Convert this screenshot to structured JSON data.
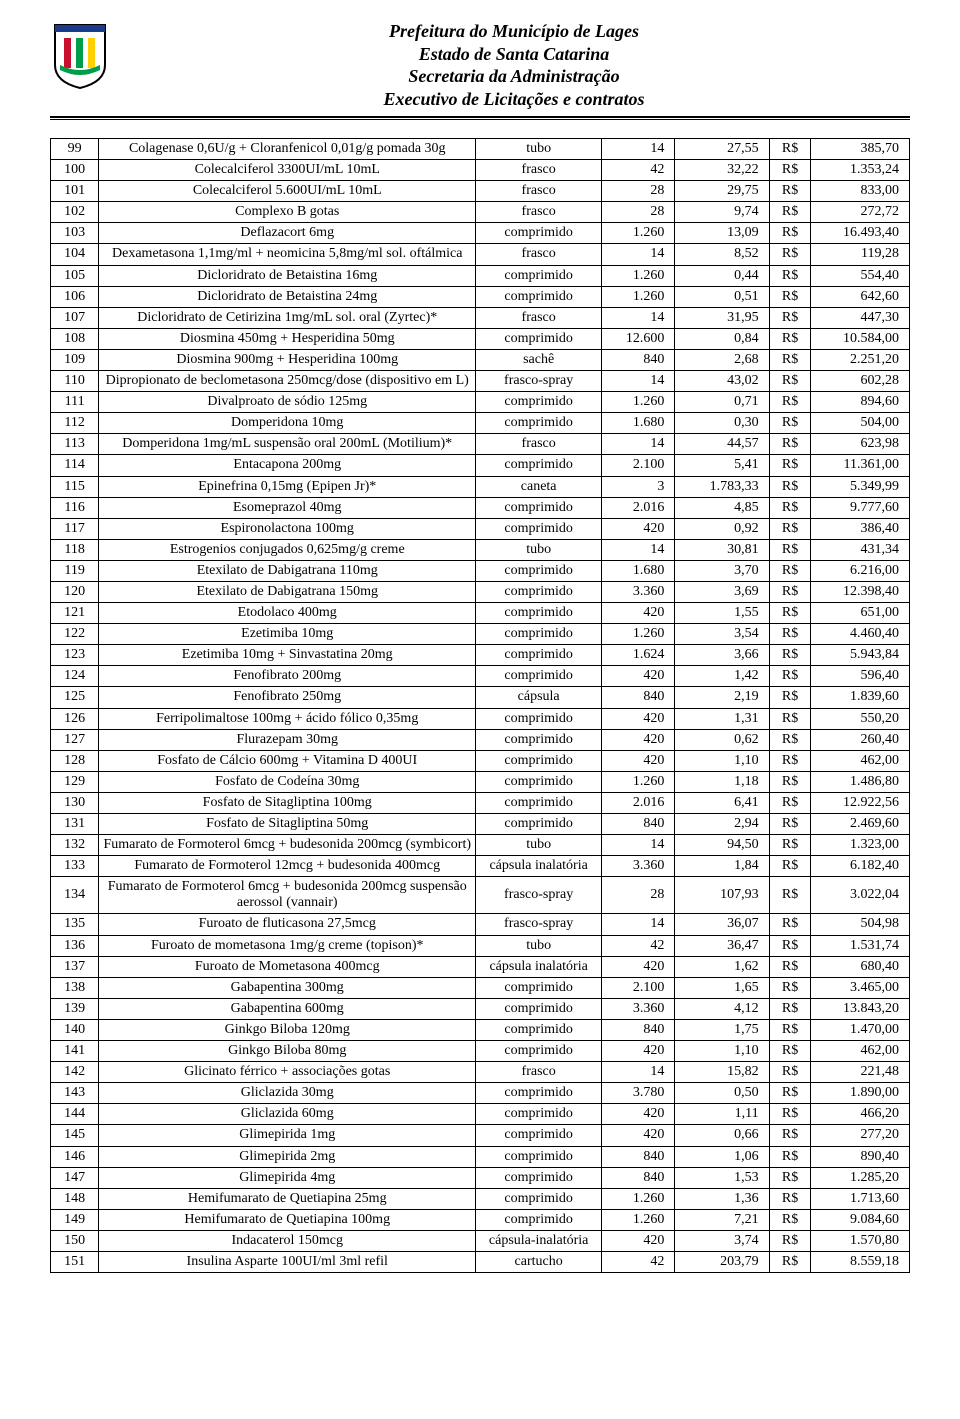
{
  "header": {
    "line1": "Prefeitura do Município de Lages",
    "line2": "Estado de Santa Catarina",
    "line3": "Secretaria da Administração",
    "line4": "Executivo de Licitações e contratos"
  },
  "currency": "R$",
  "rows": [
    {
      "n": "99",
      "desc": "Colagenase 0,6U/g + Cloranfenicol 0,01g/g pomada 30g",
      "unit": "tubo",
      "qty": "14",
      "price": "27,55",
      "total": "385,70"
    },
    {
      "n": "100",
      "desc": "Colecalciferol 3300UI/mL 10mL",
      "unit": "frasco",
      "qty": "42",
      "price": "32,22",
      "total": "1.353,24"
    },
    {
      "n": "101",
      "desc": "Colecalciferol 5.600UI/mL 10mL",
      "unit": "frasco",
      "qty": "28",
      "price": "29,75",
      "total": "833,00"
    },
    {
      "n": "102",
      "desc": "Complexo B gotas",
      "unit": "frasco",
      "qty": "28",
      "price": "9,74",
      "total": "272,72"
    },
    {
      "n": "103",
      "desc": "Deflazacort 6mg",
      "unit": "comprimido",
      "qty": "1.260",
      "price": "13,09",
      "total": "16.493,40"
    },
    {
      "n": "104",
      "desc": "Dexametasona 1,1mg/ml + neomicina 5,8mg/ml sol. oftálmica",
      "unit": "frasco",
      "qty": "14",
      "price": "8,52",
      "total": "119,28"
    },
    {
      "n": "105",
      "desc": "Dicloridrato de Betaistina 16mg",
      "unit": "comprimido",
      "qty": "1.260",
      "price": "0,44",
      "total": "554,40"
    },
    {
      "n": "106",
      "desc": "Dicloridrato de Betaistina 24mg",
      "unit": "comprimido",
      "qty": "1.260",
      "price": "0,51",
      "total": "642,60"
    },
    {
      "n": "107",
      "desc": "Dicloridrato de Cetirizina 1mg/mL sol. oral (Zyrtec)*",
      "unit": "frasco",
      "qty": "14",
      "price": "31,95",
      "total": "447,30"
    },
    {
      "n": "108",
      "desc": "Diosmina 450mg + Hesperidina 50mg",
      "unit": "comprimido",
      "qty": "12.600",
      "price": "0,84",
      "total": "10.584,00"
    },
    {
      "n": "109",
      "desc": "Diosmina 900mg + Hesperidina 100mg",
      "unit": "sachê",
      "qty": "840",
      "price": "2,68",
      "total": "2.251,20"
    },
    {
      "n": "110",
      "desc": "Dipropionato de beclometasona 250mcg/dose (dispositivo em L)",
      "unit": "frasco-spray",
      "qty": "14",
      "price": "43,02",
      "total": "602,28"
    },
    {
      "n": "111",
      "desc": "Divalproato de sódio 125mg",
      "unit": "comprimido",
      "qty": "1.260",
      "price": "0,71",
      "total": "894,60"
    },
    {
      "n": "112",
      "desc": "Domperidona 10mg",
      "unit": "comprimido",
      "qty": "1.680",
      "price": "0,30",
      "total": "504,00"
    },
    {
      "n": "113",
      "desc": "Domperidona 1mg/mL suspensão oral 200mL (Motilium)*",
      "unit": "frasco",
      "qty": "14",
      "price": "44,57",
      "total": "623,98"
    },
    {
      "n": "114",
      "desc": "Entacapona 200mg",
      "unit": "comprimido",
      "qty": "2.100",
      "price": "5,41",
      "total": "11.361,00"
    },
    {
      "n": "115",
      "desc": "Epinefrina 0,15mg (Epipen Jr)*",
      "unit": "caneta",
      "qty": "3",
      "price": "1.783,33",
      "total": "5.349,99"
    },
    {
      "n": "116",
      "desc": "Esomeprazol 40mg",
      "unit": "comprimido",
      "qty": "2.016",
      "price": "4,85",
      "total": "9.777,60"
    },
    {
      "n": "117",
      "desc": "Espironolactona 100mg",
      "unit": "comprimido",
      "qty": "420",
      "price": "0,92",
      "total": "386,40"
    },
    {
      "n": "118",
      "desc": "Estrogenios conjugados 0,625mg/g creme",
      "unit": "tubo",
      "qty": "14",
      "price": "30,81",
      "total": "431,34"
    },
    {
      "n": "119",
      "desc": "Etexilato de Dabigatrana 110mg",
      "unit": "comprimido",
      "qty": "1.680",
      "price": "3,70",
      "total": "6.216,00"
    },
    {
      "n": "120",
      "desc": "Etexilato de Dabigatrana 150mg",
      "unit": "comprimido",
      "qty": "3.360",
      "price": "3,69",
      "total": "12.398,40"
    },
    {
      "n": "121",
      "desc": "Etodolaco 400mg",
      "unit": "comprimido",
      "qty": "420",
      "price": "1,55",
      "total": "651,00"
    },
    {
      "n": "122",
      "desc": "Ezetimiba 10mg",
      "unit": "comprimido",
      "qty": "1.260",
      "price": "3,54",
      "total": "4.460,40"
    },
    {
      "n": "123",
      "desc": "Ezetimiba 10mg + Sinvastatina 20mg",
      "unit": "comprimido",
      "qty": "1.624",
      "price": "3,66",
      "total": "5.943,84"
    },
    {
      "n": "124",
      "desc": "Fenofibrato 200mg",
      "unit": "comprimido",
      "qty": "420",
      "price": "1,42",
      "total": "596,40"
    },
    {
      "n": "125",
      "desc": "Fenofibrato 250mg",
      "unit": "cápsula",
      "qty": "840",
      "price": "2,19",
      "total": "1.839,60"
    },
    {
      "n": "126",
      "desc": "Ferripolimaltose 100mg + ácido fólico 0,35mg",
      "unit": "comprimido",
      "qty": "420",
      "price": "1,31",
      "total": "550,20"
    },
    {
      "n": "127",
      "desc": "Flurazepam 30mg",
      "unit": "comprimido",
      "qty": "420",
      "price": "0,62",
      "total": "260,40"
    },
    {
      "n": "128",
      "desc": "Fosfato de Cálcio 600mg + Vitamina D 400UI",
      "unit": "comprimido",
      "qty": "420",
      "price": "1,10",
      "total": "462,00"
    },
    {
      "n": "129",
      "desc": "Fosfato de Codeína 30mg",
      "unit": "comprimido",
      "qty": "1.260",
      "price": "1,18",
      "total": "1.486,80"
    },
    {
      "n": "130",
      "desc": "Fosfato de Sitagliptina 100mg",
      "unit": "comprimido",
      "qty": "2.016",
      "price": "6,41",
      "total": "12.922,56"
    },
    {
      "n": "131",
      "desc": "Fosfato de Sitagliptina 50mg",
      "unit": "comprimido",
      "qty": "840",
      "price": "2,94",
      "total": "2.469,60"
    },
    {
      "n": "132",
      "desc": "Fumarato de Formoterol 6mcg + budesonida 200mcg (symbicort)",
      "unit": "tubo",
      "qty": "14",
      "price": "94,50",
      "total": "1.323,00"
    },
    {
      "n": "133",
      "desc": "Fumarato de Formoterol 12mcg + budesonida 400mcg",
      "unit": "cápsula inalatória",
      "qty": "3.360",
      "price": "1,84",
      "total": "6.182,40"
    },
    {
      "n": "134",
      "desc": "Fumarato de Formoterol 6mcg + budesonida 200mcg suspensão aerossol (vannair)",
      "unit": "frasco-spray",
      "qty": "28",
      "price": "107,93",
      "total": "3.022,04"
    },
    {
      "n": "135",
      "desc": "Furoato de fluticasona 27,5mcg",
      "unit": "frasco-spray",
      "qty": "14",
      "price": "36,07",
      "total": "504,98"
    },
    {
      "n": "136",
      "desc": "Furoato de mometasona 1mg/g creme (topison)*",
      "unit": "tubo",
      "qty": "42",
      "price": "36,47",
      "total": "1.531,74"
    },
    {
      "n": "137",
      "desc": "Furoato de Mometasona 400mcg",
      "unit": "cápsula inalatória",
      "qty": "420",
      "price": "1,62",
      "total": "680,40"
    },
    {
      "n": "138",
      "desc": "Gabapentina 300mg",
      "unit": "comprimido",
      "qty": "2.100",
      "price": "1,65",
      "total": "3.465,00"
    },
    {
      "n": "139",
      "desc": "Gabapentina 600mg",
      "unit": "comprimido",
      "qty": "3.360",
      "price": "4,12",
      "total": "13.843,20"
    },
    {
      "n": "140",
      "desc": "Ginkgo Biloba 120mg",
      "unit": "comprimido",
      "qty": "840",
      "price": "1,75",
      "total": "1.470,00"
    },
    {
      "n": "141",
      "desc": "Ginkgo Biloba 80mg",
      "unit": "comprimido",
      "qty": "420",
      "price": "1,10",
      "total": "462,00"
    },
    {
      "n": "142",
      "desc": "Glicinato férrico + associações gotas",
      "unit": "frasco",
      "qty": "14",
      "price": "15,82",
      "total": "221,48"
    },
    {
      "n": "143",
      "desc": "Gliclazida 30mg",
      "unit": "comprimido",
      "qty": "3.780",
      "price": "0,50",
      "total": "1.890,00"
    },
    {
      "n": "144",
      "desc": "Gliclazida 60mg",
      "unit": "comprimido",
      "qty": "420",
      "price": "1,11",
      "total": "466,20"
    },
    {
      "n": "145",
      "desc": "Glimepirida 1mg",
      "unit": "comprimido",
      "qty": "420",
      "price": "0,66",
      "total": "277,20"
    },
    {
      "n": "146",
      "desc": "Glimepirida 2mg",
      "unit": "comprimido",
      "qty": "840",
      "price": "1,06",
      "total": "890,40"
    },
    {
      "n": "147",
      "desc": "Glimepirida 4mg",
      "unit": "comprimido",
      "qty": "840",
      "price": "1,53",
      "total": "1.285,20"
    },
    {
      "n": "148",
      "desc": "Hemifumarato de Quetiapina 25mg",
      "unit": "comprimido",
      "qty": "1.260",
      "price": "1,36",
      "total": "1.713,60"
    },
    {
      "n": "149",
      "desc": "Hemifumarato de Quetiapina 100mg",
      "unit": "comprimido",
      "qty": "1.260",
      "price": "7,21",
      "total": "9.084,60"
    },
    {
      "n": "150",
      "desc": "Indacaterol 150mcg",
      "unit": "cápsula-inalatória",
      "qty": "420",
      "price": "3,74",
      "total": "1.570,80"
    },
    {
      "n": "151",
      "desc": "Insulina Asparte 100UI/ml 3ml refil",
      "unit": "cartucho",
      "qty": "42",
      "price": "203,79",
      "total": "8.559,18"
    }
  ]
}
